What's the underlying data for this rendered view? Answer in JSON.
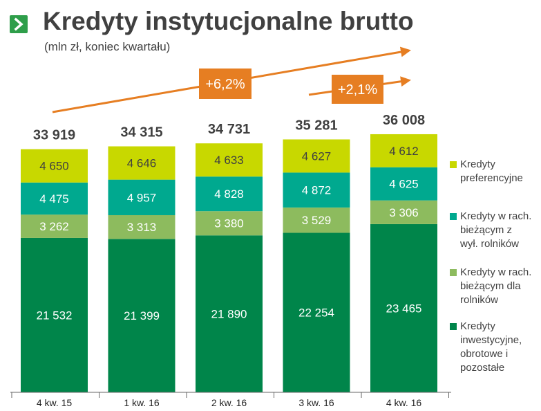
{
  "header": {
    "title": "Kredyty instytucjonalne brutto",
    "subtitle": "(mln zł, koniec kwartału)"
  },
  "colors": {
    "preferencyjne": "#c8d800",
    "rach_biezacy_z_wyl": "#00a98f",
    "rach_biezacy_rolnicy": "#8dbb5e",
    "inwestycyjne": "#00854a",
    "arrow": "#e67e22",
    "chevron": "#2e9e4a"
  },
  "chart_data": {
    "type": "bar",
    "stacked": true,
    "categories": [
      "4 kw. 15",
      "1 kw. 16",
      "2 kw. 16",
      "3 kw. 16",
      "4 kw. 16"
    ],
    "totals": [
      "33 919",
      "34 315",
      "34 731",
      "35 281",
      "36 008"
    ],
    "series": [
      {
        "key": "inwestycyjne",
        "name": "Kredyty inwestycyjne, obrotowe i pozostałe",
        "values": [
          21532,
          21399,
          21890,
          22254,
          23465
        ],
        "labels": [
          "21 532",
          "21 399",
          "21 890",
          "22 254",
          "23 465"
        ]
      },
      {
        "key": "rach_biezacy_rolnicy",
        "name": "Kredyty w rach. bieżącym dla rolników",
        "values": [
          3262,
          3313,
          3380,
          3529,
          3306
        ],
        "labels": [
          "3 262",
          "3 313",
          "3 380",
          "3 529",
          "3 306"
        ]
      },
      {
        "key": "rach_biezacy_z_wyl",
        "name": "Kredyty w rach. bieżącym z wył. rolników",
        "values": [
          4475,
          4957,
          4828,
          4872,
          4625
        ],
        "labels": [
          "4 475",
          "4 957",
          "4 828",
          "4 872",
          "4 625"
        ]
      },
      {
        "key": "preferencyjne",
        "name": "Kredyty preferencyjne",
        "values": [
          4650,
          4646,
          4633,
          4627,
          4612
        ],
        "labels": [
          "4 650",
          "4 646",
          "4 633",
          "4 627",
          "4 612"
        ]
      }
    ],
    "annotations": [
      {
        "text": "+6,2%",
        "from_category": "4 kw. 15",
        "to_category": "4 kw. 16"
      },
      {
        "text": "+2,1%",
        "from_category": "3 kw. 16",
        "to_category": "4 kw. 16"
      }
    ],
    "legend_position": "right",
    "grid": false
  },
  "legend": [
    {
      "key": "preferencyjne",
      "lines": [
        "Kredyty",
        "preferencyjne"
      ]
    },
    {
      "key": "rach_biezacy_z_wyl",
      "lines": [
        "Kredyty w rach.",
        "bieżącym z",
        "wył. rolników"
      ]
    },
    {
      "key": "rach_biezacy_rolnicy",
      "lines": [
        "Kredyty w rach.",
        "bieżącym dla",
        "rolników"
      ]
    },
    {
      "key": "inwestycyjne",
      "lines": [
        "Kredyty",
        "inwestycyjne,",
        "obrotowe i",
        "pozostałe"
      ]
    }
  ],
  "icons": {
    "header_icon": "chevron-right-icon"
  }
}
